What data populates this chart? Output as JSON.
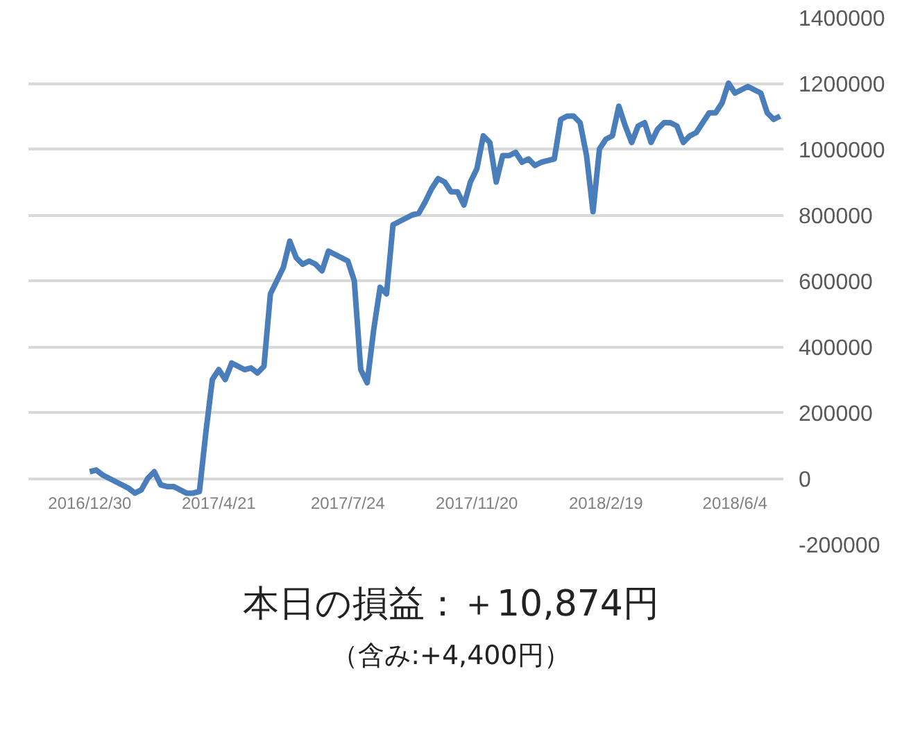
{
  "chart_data": {
    "type": "line",
    "categories": [
      "2016/12/30",
      null,
      null,
      null,
      null,
      null,
      null,
      null,
      null,
      null,
      null,
      null,
      null,
      null,
      null,
      null,
      null,
      null,
      null,
      null,
      "2017/4/21",
      null,
      null,
      null,
      null,
      null,
      null,
      null,
      null,
      null,
      null,
      null,
      null,
      null,
      null,
      null,
      null,
      null,
      null,
      null,
      "2017/7/24",
      null,
      null,
      null,
      null,
      null,
      null,
      null,
      null,
      null,
      null,
      null,
      null,
      null,
      null,
      null,
      null,
      null,
      null,
      null,
      "2017/11/20",
      null,
      null,
      null,
      null,
      null,
      null,
      null,
      null,
      null,
      null,
      null,
      null,
      null,
      null,
      null,
      null,
      null,
      null,
      null,
      "2018/2/19",
      null,
      null,
      null,
      null,
      null,
      null,
      null,
      null,
      null,
      null,
      null,
      null,
      null,
      null,
      null,
      null,
      null,
      null,
      null,
      "2018/6/4",
      null,
      null,
      null,
      null,
      null,
      null,
      null
    ],
    "series": [
      {
        "color": "#4a7ebb",
        "values": [
          20000,
          25000,
          10000,
          0,
          -10000,
          -20000,
          -30000,
          -45000,
          -35000,
          0,
          20000,
          -20000,
          -25000,
          -25000,
          -35000,
          -45000,
          -45000,
          -40000,
          140000,
          300000,
          330000,
          300000,
          350000,
          340000,
          330000,
          335000,
          320000,
          340000,
          560000,
          600000,
          640000,
          720000,
          670000,
          650000,
          660000,
          650000,
          630000,
          690000,
          680000,
          670000,
          660000,
          600000,
          330000,
          290000,
          450000,
          580000,
          560000,
          770000,
          780000,
          790000,
          800000,
          805000,
          840000,
          880000,
          910000,
          900000,
          870000,
          870000,
          830000,
          900000,
          940000,
          1040000,
          1020000,
          900000,
          980000,
          980000,
          990000,
          960000,
          970000,
          950000,
          960000,
          965000,
          970000,
          1090000,
          1100000,
          1100000,
          1080000,
          980000,
          810000,
          1000000,
          1030000,
          1040000,
          1130000,
          1070000,
          1020000,
          1070000,
          1080000,
          1020000,
          1060000,
          1080000,
          1080000,
          1070000,
          1020000,
          1040000,
          1050000,
          1080000,
          1110000,
          1110000,
          1140000,
          1200000,
          1170000,
          1180000,
          1190000,
          1180000,
          1170000,
          1110000,
          1090000,
          1100000
        ]
      }
    ],
    "ylim": [
      -200000,
      1400000
    ],
    "yticks": [
      -200000,
      0,
      200000,
      400000,
      600000,
      800000,
      1000000,
      1200000,
      1400000
    ],
    "grid": "y",
    "marker": "none",
    "line_style": "solid",
    "annotations": [
      "本日の損益：＋10,874円",
      "（含み:+4,400円）"
    ]
  }
}
